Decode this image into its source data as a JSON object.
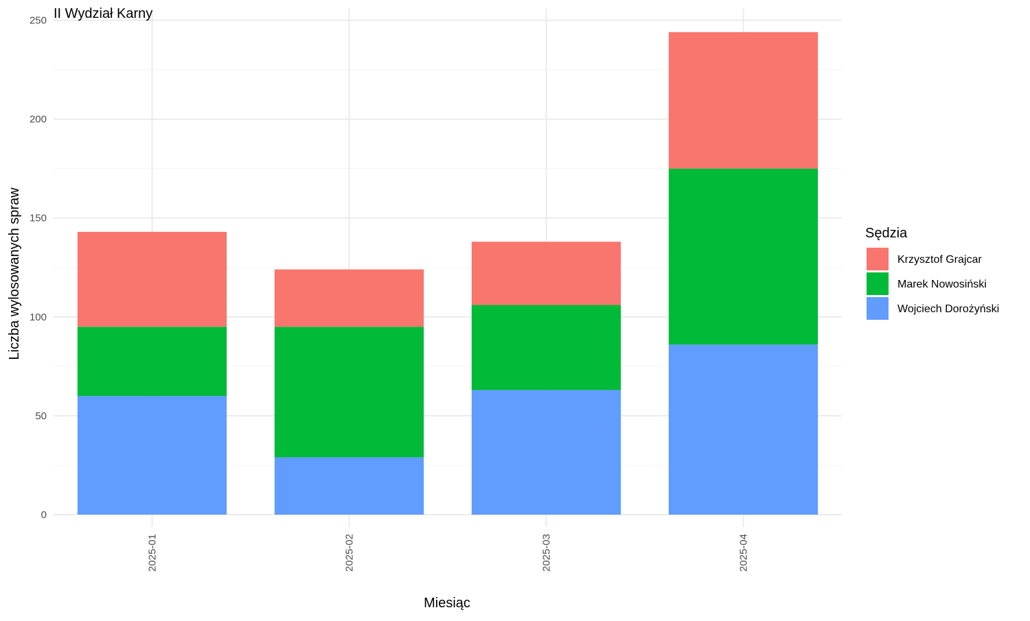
{
  "chart_data": {
    "type": "bar",
    "stacked": true,
    "title": "II Wydział Karny",
    "xlabel": "Miesiąc",
    "ylabel": "Liczba wylosowanych spraw",
    "ylim": [
      0,
      250
    ],
    "yticks": [
      "0",
      "50",
      "100",
      "150",
      "200",
      "250"
    ],
    "categories": [
      "2025-01",
      "2025-02",
      "2025-03",
      "2025-04"
    ],
    "series": [
      {
        "name": "Wojciech Dorożyński",
        "color": "#619CFF",
        "values": [
          60,
          29,
          63,
          86
        ]
      },
      {
        "name": "Marek Nowosiński",
        "color": "#00BA38",
        "values": [
          35,
          66,
          43,
          89
        ]
      },
      {
        "name": "Krzysztof Grajcar",
        "color": "#F8766D",
        "values": [
          48,
          29,
          32,
          69
        ]
      }
    ],
    "legend": {
      "title": "Sędzia",
      "placement": "right",
      "order": [
        "Krzysztof Grajcar",
        "Marek Nowosiński",
        "Wojciech Dorożyński"
      ]
    },
    "grid": true
  }
}
